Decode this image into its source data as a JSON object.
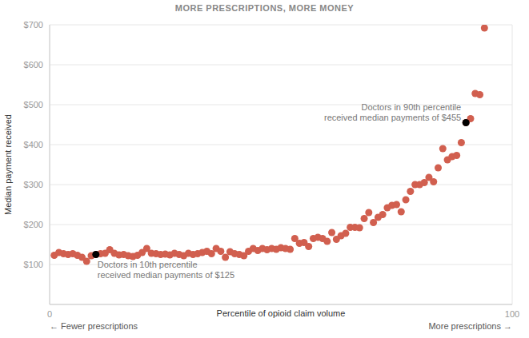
{
  "chart_data": {
    "type": "scatter",
    "title": "MORE PRESCRIPTIONS, MORE MONEY",
    "x_label": "Percentile of opioid claim volume",
    "y_label": "Median payment received",
    "x": [
      1,
      2,
      3,
      4,
      5,
      6,
      7,
      8,
      9,
      10,
      11,
      12,
      13,
      14,
      15,
      16,
      17,
      18,
      19,
      20,
      21,
      22,
      23,
      24,
      25,
      26,
      27,
      28,
      29,
      30,
      31,
      32,
      33,
      34,
      35,
      36,
      37,
      38,
      39,
      40,
      41,
      42,
      43,
      44,
      45,
      46,
      47,
      48,
      49,
      50,
      51,
      52,
      53,
      54,
      55,
      56,
      57,
      58,
      59,
      60,
      61,
      62,
      63,
      64,
      65,
      66,
      67,
      68,
      69,
      70,
      71,
      72,
      73,
      74,
      75,
      76,
      77,
      78,
      79,
      80,
      81,
      82,
      83,
      84,
      85,
      86,
      87,
      88,
      89,
      90,
      91,
      92,
      93,
      94
    ],
    "values": [
      123,
      130,
      127,
      125,
      127,
      123,
      118,
      108,
      122,
      125,
      127,
      128,
      137,
      128,
      124,
      125,
      122,
      120,
      123,
      130,
      140,
      128,
      127,
      125,
      126,
      124,
      128,
      125,
      122,
      128,
      125,
      127,
      130,
      133,
      127,
      140,
      133,
      118,
      132,
      127,
      125,
      122,
      133,
      140,
      135,
      140,
      137,
      140,
      138,
      142,
      140,
      138,
      165,
      153,
      155,
      145,
      165,
      168,
      165,
      158,
      180,
      163,
      172,
      178,
      193,
      193,
      192,
      215,
      230,
      205,
      218,
      225,
      242,
      248,
      250,
      232,
      262,
      283,
      300,
      300,
      305,
      318,
      307,
      342,
      390,
      362,
      370,
      373,
      405,
      455,
      465,
      528,
      525,
      692
    ],
    "color": "#d15f4f",
    "xlim": [
      0,
      100
    ],
    "xticks": [
      0,
      100
    ],
    "ylim": [
      0,
      700
    ],
    "yticks": [
      {
        "value": 100,
        "label": "$100"
      },
      {
        "value": 200,
        "label": "$200"
      },
      {
        "value": 300,
        "label": "$300"
      },
      {
        "value": 400,
        "label": "$400"
      },
      {
        "value": 500,
        "label": "$500"
      },
      {
        "value": 600,
        "label": "$600"
      },
      {
        "value": 700,
        "label": "$700"
      }
    ],
    "grid": true,
    "annotations": [
      {
        "x": 10,
        "y": 125,
        "color": "#000000",
        "text": [
          "Doctors in 10th percentile",
          "received median payments of $125"
        ]
      },
      {
        "x": 90,
        "y": 455,
        "color": "#000000",
        "text": [
          "Doctors in 90th percentile",
          "received median payments of $455"
        ]
      }
    ],
    "x_arrow_labels": [
      "← Fewer prescriptions",
      "More prescriptions →"
    ]
  }
}
